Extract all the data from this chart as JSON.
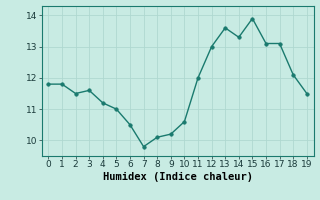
{
  "x": [
    0,
    1,
    2,
    3,
    4,
    5,
    6,
    7,
    8,
    9,
    10,
    11,
    12,
    13,
    14,
    15,
    16,
    17,
    18,
    19
  ],
  "y": [
    11.8,
    11.8,
    11.5,
    11.6,
    11.2,
    11.0,
    10.5,
    9.8,
    10.1,
    10.2,
    10.6,
    12.0,
    13.0,
    13.6,
    13.3,
    13.9,
    13.1,
    13.1,
    12.1,
    11.5
  ],
  "line_color": "#1a7a6e",
  "marker_color": "#1a7a6e",
  "bg_color": "#c8ebe3",
  "grid_color": "#afd8d0",
  "xlabel": "Humidex (Indice chaleur)",
  "xlim": [
    -0.5,
    19.5
  ],
  "ylim": [
    9.5,
    14.3
  ],
  "yticks": [
    10,
    11,
    12,
    13,
    14
  ],
  "xticks": [
    0,
    1,
    2,
    3,
    4,
    5,
    6,
    7,
    8,
    9,
    10,
    11,
    12,
    13,
    14,
    15,
    16,
    17,
    18,
    19
  ],
  "tick_label_fontsize": 6.5,
  "xlabel_fontsize": 7.5,
  "line_width": 1.0,
  "marker_size": 2.5
}
